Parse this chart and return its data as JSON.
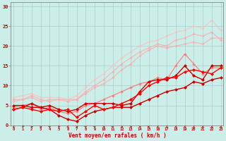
{
  "title": "",
  "xlabel": "Vent moyen/en rafales ( km/h )",
  "x_ticks": [
    0,
    1,
    2,
    3,
    4,
    5,
    6,
    7,
    8,
    9,
    10,
    11,
    12,
    13,
    14,
    15,
    16,
    17,
    18,
    19,
    20,
    21,
    22,
    23
  ],
  "ylim": [
    0,
    31
  ],
  "xlim": [
    -0.3,
    23.3
  ],
  "yticks": [
    0,
    5,
    10,
    15,
    20,
    25,
    30
  ],
  "bg_color": "#cceee8",
  "grid_color": "#aacccc",
  "series": [
    {
      "color": "#ffaaaa",
      "alpha": 0.85,
      "lw": 0.8,
      "ms": 2.0,
      "y": [
        6.5,
        6.5,
        7.5,
        6.5,
        6.0,
        6.5,
        6.0,
        6.5,
        8.0,
        9.5,
        10.5,
        12.0,
        14.0,
        15.5,
        17.5,
        19.0,
        20.0,
        19.5,
        20.0,
        20.5,
        21.0,
        20.5,
        22.0,
        22.0
      ]
    },
    {
      "color": "#ffaaaa",
      "alpha": 0.85,
      "lw": 0.8,
      "ms": 2.0,
      "y": [
        6.0,
        6.5,
        7.0,
        6.0,
        6.5,
        6.5,
        6.5,
        6.5,
        8.5,
        10.0,
        11.5,
        13.5,
        15.5,
        17.0,
        18.5,
        19.5,
        20.5,
        20.0,
        21.5,
        22.0,
        23.0,
        22.5,
        23.5,
        21.5
      ]
    },
    {
      "color": "#ffbbbb",
      "alpha": 0.75,
      "lw": 0.8,
      "ms": 2.0,
      "y": [
        7.0,
        7.5,
        8.0,
        7.0,
        7.0,
        7.0,
        6.5,
        7.5,
        9.5,
        11.5,
        13.0,
        15.0,
        17.0,
        18.5,
        20.0,
        21.0,
        21.5,
        22.5,
        23.5,
        24.0,
        25.0,
        24.5,
        26.5,
        24.0
      ]
    },
    {
      "color": "#ff7777",
      "alpha": 0.9,
      "lw": 0.9,
      "ms": 2.2,
      "y": [
        4.5,
        5.0,
        5.5,
        4.0,
        4.5,
        3.5,
        3.0,
        3.5,
        5.0,
        5.5,
        6.5,
        7.5,
        8.5,
        9.5,
        10.5,
        11.0,
        12.0,
        11.5,
        15.0,
        18.0,
        15.5,
        13.0,
        14.5,
        14.5
      ]
    },
    {
      "color": "#cc0000",
      "alpha": 1.0,
      "lw": 1.0,
      "ms": 2.5,
      "y": [
        5.0,
        5.0,
        4.5,
        4.5,
        5.0,
        4.0,
        3.5,
        4.0,
        5.5,
        5.5,
        5.5,
        5.5,
        5.0,
        5.5,
        8.5,
        11.0,
        11.5,
        11.5,
        12.5,
        15.0,
        12.5,
        11.5,
        15.0,
        15.0
      ]
    },
    {
      "color": "#cc0000",
      "alpha": 1.0,
      "lw": 1.0,
      "ms": 2.5,
      "y": [
        4.0,
        4.5,
        5.5,
        4.5,
        4.0,
        2.5,
        1.5,
        1.0,
        2.5,
        3.5,
        4.0,
        4.5,
        4.5,
        4.5,
        5.5,
        6.5,
        7.5,
        8.5,
        9.0,
        9.5,
        11.0,
        10.5,
        11.5,
        12.0
      ]
    },
    {
      "color": "#ff0000",
      "alpha": 1.0,
      "lw": 1.0,
      "ms": 2.5,
      "y": [
        4.0,
        4.5,
        4.0,
        3.5,
        4.0,
        3.5,
        4.0,
        2.0,
        3.5,
        5.0,
        4.0,
        4.5,
        5.5,
        6.5,
        8.0,
        10.0,
        11.0,
        12.0,
        12.0,
        13.5,
        14.0,
        13.5,
        13.0,
        14.5
      ]
    }
  ],
  "arrow_color": "#cc0000",
  "tick_color": "#cc0000",
  "xlabel_color": "#cc0000",
  "ylabel_color": "#cc0000"
}
